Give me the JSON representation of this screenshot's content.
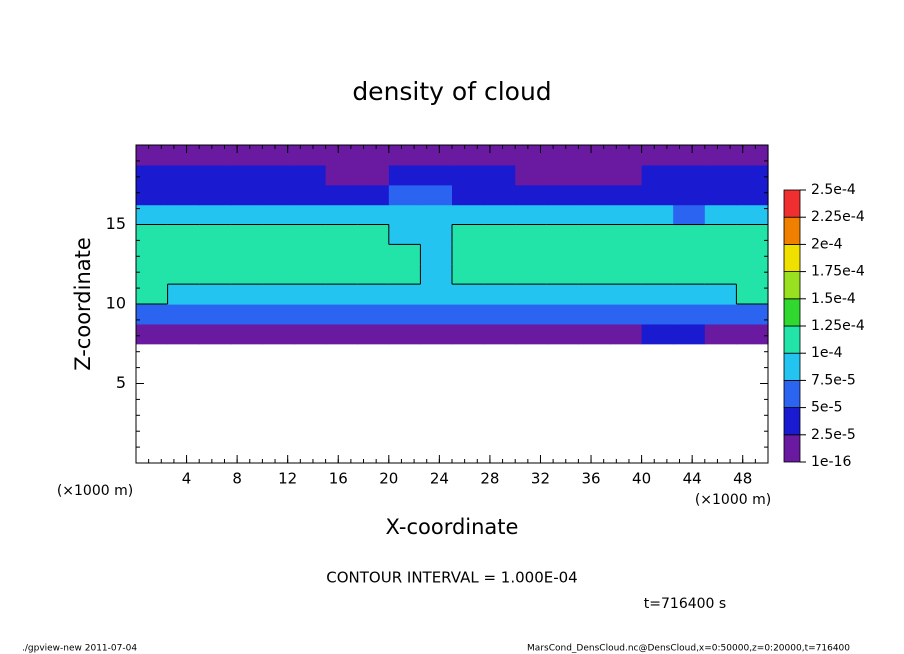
{
  "chart_data": {
    "type": "heatmap",
    "title": "density of cloud",
    "xlabel": "X-coordinate",
    "ylabel": "Z-coordinate",
    "x_unit": "(×1000 m)",
    "y_unit": "(×1000 m)",
    "xlim": [
      0,
      50
    ],
    "ylim": [
      0,
      20
    ],
    "xticks": [
      4,
      8,
      12,
      16,
      20,
      24,
      28,
      32,
      36,
      40,
      44,
      48
    ],
    "yticks": [
      5,
      10,
      15
    ],
    "x_bins": [
      0,
      2.5,
      5,
      7.5,
      10,
      12.5,
      15,
      17.5,
      20,
      22.5,
      25,
      27.5,
      30,
      32.5,
      35,
      37.5,
      40,
      42.5,
      45,
      47.5,
      50
    ],
    "z_bins": [
      7.5,
      8.75,
      10,
      11.25,
      12.5,
      13.75,
      15,
      16.25,
      17.5,
      18.75,
      20
    ],
    "values": [
      [
        2e-05,
        2e-05,
        2e-05,
        2e-05,
        2e-05,
        2e-05,
        2e-05,
        2e-05,
        2e-05,
        2e-05,
        2e-05,
        2e-05,
        2e-05,
        2e-05,
        2e-05,
        2e-05,
        3e-05,
        3e-05,
        2e-05,
        2e-05
      ],
      [
        6.5e-05,
        6.5e-05,
        6.5e-05,
        6.5e-05,
        6.5e-05,
        6.5e-05,
        6.5e-05,
        6.5e-05,
        6.5e-05,
        6.5e-05,
        6.5e-05,
        6.5e-05,
        6.5e-05,
        6.5e-05,
        6.5e-05,
        6.5e-05,
        5e-05,
        5e-05,
        6.5e-05,
        6.5e-05
      ],
      [
        0.000105,
        9.5e-05,
        9.5e-05,
        9.5e-05,
        9.5e-05,
        9.5e-05,
        9.5e-05,
        9.5e-05,
        8.5e-05,
        8.5e-05,
        8.5e-05,
        9.5e-05,
        9.5e-05,
        9.5e-05,
        9.5e-05,
        9.5e-05,
        9.5e-05,
        9.5e-05,
        9.5e-05,
        0.000105
      ],
      [
        0.000115,
        0.000115,
        0.000115,
        0.000115,
        0.000115,
        0.000115,
        0.000115,
        0.000115,
        0.000105,
        9.5e-05,
        0.000115,
        0.000115,
        0.000115,
        0.000115,
        0.000115,
        0.000115,
        0.000115,
        0.000115,
        0.000115,
        0.000115
      ],
      [
        0.00012,
        0.00012,
        0.00012,
        0.00012,
        0.00012,
        0.00012,
        0.00012,
        0.00012,
        0.00011,
        9e-05,
        0.00012,
        0.00012,
        0.00012,
        0.00012,
        0.00012,
        0.00012,
        0.00012,
        0.00012,
        0.00012,
        0.00012
      ],
      [
        0.00011,
        0.00011,
        0.00011,
        0.00011,
        0.00011,
        0.00011,
        0.00011,
        0.00011,
        9e-05,
        8.5e-05,
        0.000105,
        0.00011,
        0.00011,
        0.00011,
        0.00011,
        0.00011,
        0.000115,
        0.000115,
        0.000115,
        0.000115
      ],
      [
        8e-05,
        8e-05,
        8e-05,
        7.5e-05,
        7.5e-05,
        7.5e-05,
        7.5e-05,
        7.5e-05,
        8e-05,
        8e-05,
        7.5e-05,
        7.5e-05,
        7.5e-05,
        7.5e-05,
        7.5e-05,
        7.5e-05,
        7.5e-05,
        5e-05,
        7.5e-05,
        7.5e-05
      ],
      [
        4e-05,
        4e-05,
        4e-05,
        4e-05,
        4e-05,
        4e-05,
        4e-05,
        4e-05,
        6.5e-05,
        6.5e-05,
        4e-05,
        3e-05,
        3e-05,
        3e-05,
        3e-05,
        3e-05,
        4e-05,
        4e-05,
        4e-05,
        4e-05
      ],
      [
        2.5e-05,
        2.5e-05,
        2.5e-05,
        2.5e-05,
        2.5e-05,
        2.5e-05,
        1e-05,
        1e-05,
        2.5e-05,
        4.5e-05,
        2.5e-05,
        2.5e-05,
        1.5e-05,
        1.5e-05,
        1.5e-05,
        1.5e-05,
        2.5e-05,
        2.5e-05,
        2.5e-05,
        2.5e-05
      ],
      [
        2e-05,
        2e-05,
        2e-05,
        2e-05,
        1.5e-05,
        1.5e-05,
        1e-05,
        1e-05,
        1.5e-05,
        1.5e-05,
        1.5e-05,
        1.5e-05,
        1.5e-05,
        1.5e-05,
        1.5e-05,
        1.5e-05,
        1.5e-05,
        1.5e-05,
        1.5e-05,
        1.5e-05
      ]
    ],
    "levels": [
      {
        "value": 1e-16,
        "label": "1e-16"
      },
      {
        "value": 2.5e-05,
        "label": "2.5e-5"
      },
      {
        "value": 5e-05,
        "label": "5e-5"
      },
      {
        "value": 7.5e-05,
        "label": "7.5e-5"
      },
      {
        "value": 0.0001,
        "label": "1e-4"
      },
      {
        "value": 0.000125,
        "label": "1.25e-4"
      },
      {
        "value": 0.00015,
        "label": "1.5e-4"
      },
      {
        "value": 0.000175,
        "label": "1.75e-4"
      },
      {
        "value": 0.0002,
        "label": "2e-4"
      },
      {
        "value": 0.000225,
        "label": "2.25e-4"
      },
      {
        "value": 0.00025,
        "label": "2.5e-4"
      }
    ],
    "colors": [
      "#6a1aa0",
      "#1a1ad0",
      "#2a64f0",
      "#24c4f0",
      "#22e4a8",
      "#30d830",
      "#98e020",
      "#f0e000",
      "#f08000",
      "#f03030"
    ],
    "contour_level": 0.0001,
    "contour_text": "CONTOUR INTERVAL = 1.000E-04",
    "time_text": "t=716400 s",
    "footer_left": "./gpview-new   2011-07-04",
    "footer_right": "MarsCond_DensCloud.nc@DensCloud,x=0:50000,z=0:20000,t=716400"
  }
}
